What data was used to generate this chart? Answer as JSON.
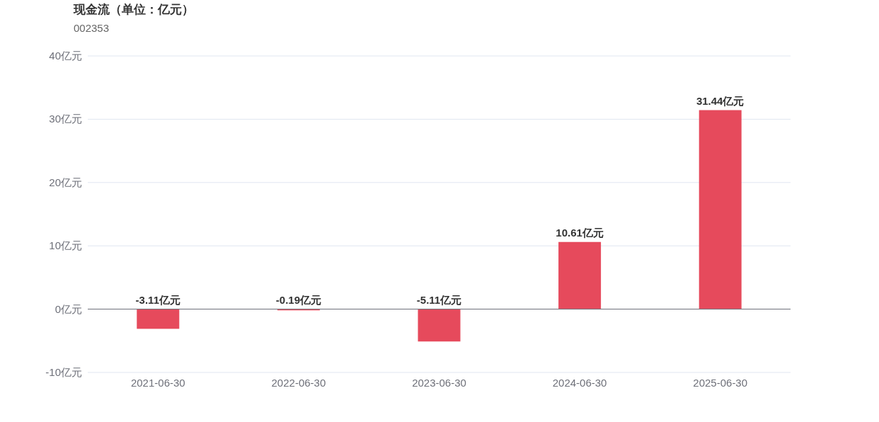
{
  "chart_data": {
    "type": "bar",
    "title": "现金流（单位：亿元）",
    "subtitle": "002353",
    "categories": [
      "2021-06-30",
      "2022-06-30",
      "2023-06-30",
      "2024-06-30",
      "2025-06-30"
    ],
    "values": [
      -3.11,
      -0.19,
      -5.11,
      10.61,
      31.44
    ],
    "value_labels": [
      "-3.11亿元",
      "-0.19亿元",
      "-5.11亿元",
      "10.61亿元",
      "31.44亿元"
    ],
    "color": "#e64a5c",
    "ylim": [
      -10,
      40
    ],
    "yticks": [
      {
        "value": -10,
        "label": "-10亿元"
      },
      {
        "value": 0,
        "label": "0亿元"
      },
      {
        "value": 10,
        "label": "10亿元"
      },
      {
        "value": 20,
        "label": "20亿元"
      },
      {
        "value": 30,
        "label": "30亿元"
      },
      {
        "value": 40,
        "label": "40亿元"
      }
    ],
    "grid": "y"
  }
}
